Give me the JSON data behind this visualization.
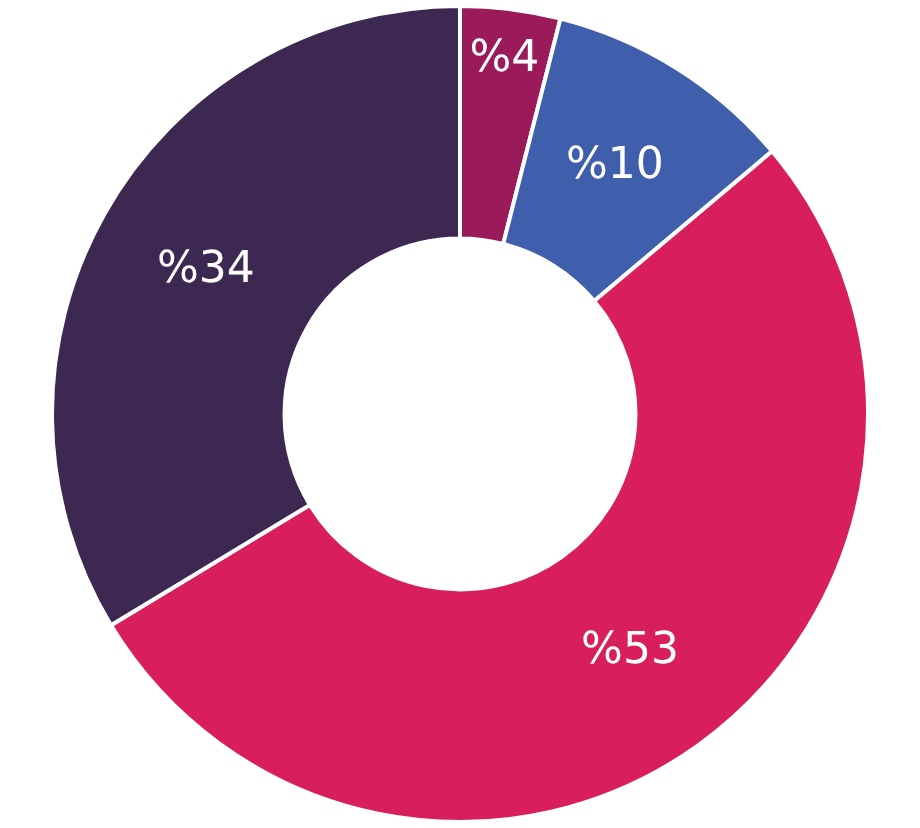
{
  "chart_data": {
    "type": "donut",
    "categories": [
      null,
      null,
      null,
      null
    ],
    "values": [
      4,
      10,
      53,
      34
    ],
    "colors": [
      "#9b1b5a",
      "#3f5fad",
      "#d81e5b",
      "#3d2852"
    ],
    "value_labels": [
      "%4",
      "%10",
      "%53",
      "%34"
    ]
  }
}
